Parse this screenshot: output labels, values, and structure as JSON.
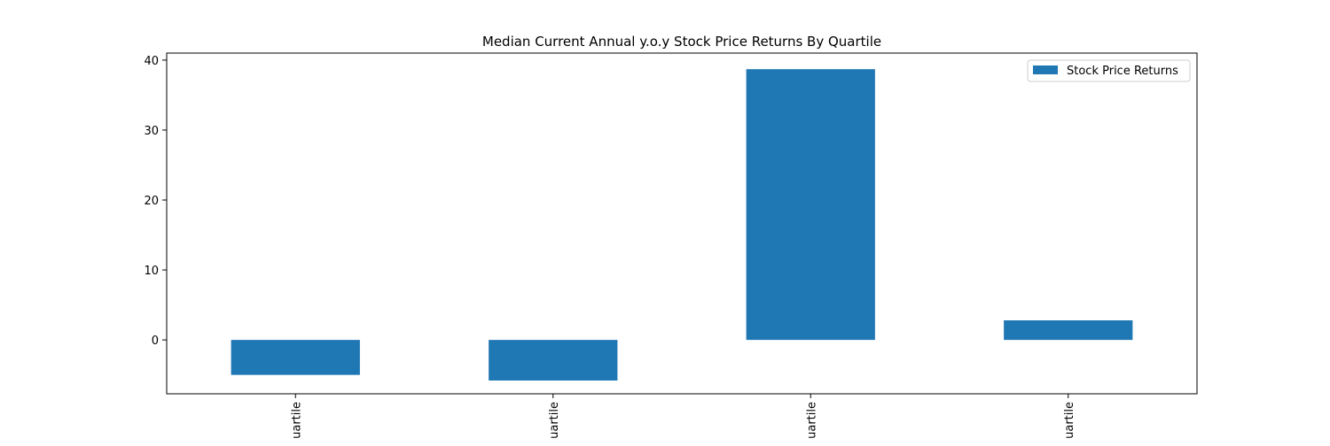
{
  "chart_data": {
    "type": "bar",
    "title": "Median Current Annual y.o.y Stock Price Returns By Quartile",
    "categories": [
      "uartile",
      "uartile",
      "uartile",
      "uartile"
    ],
    "series": [
      {
        "name": "Stock Price Returns",
        "values": [
          -5.0,
          -5.8,
          38.7,
          2.8
        ],
        "color": "#1f77b4"
      }
    ],
    "xlabel": "",
    "ylabel": "",
    "ylim": [
      -7.7,
      41.0
    ],
    "yticks": [
      0,
      10,
      20,
      30,
      40
    ],
    "grid": false,
    "legend_position": "top-right"
  }
}
